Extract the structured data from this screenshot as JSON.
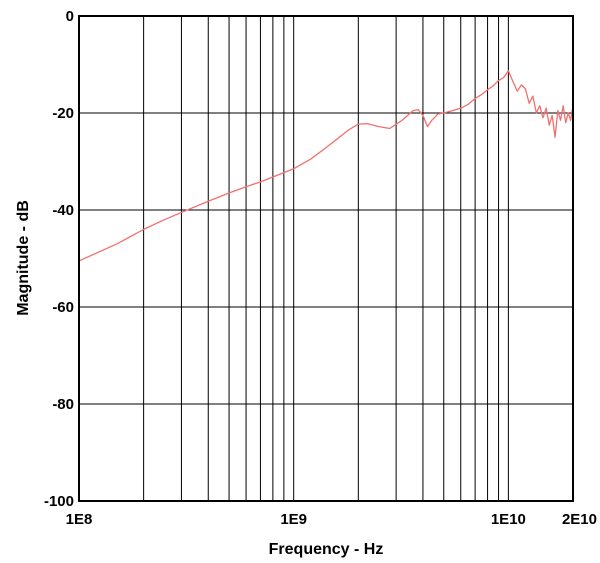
{
  "chart_data": {
    "type": "line",
    "xlabel": "Frequency - Hz",
    "ylabel": "Magnitude - dB",
    "x_scale": "log",
    "xlim": [
      100000000,
      20000000000
    ],
    "ylim": [
      -100,
      0
    ],
    "x_tick_labels": [
      {
        "value": 100000000,
        "label": "1E8"
      },
      {
        "value": 1000000000,
        "label": "1E9"
      },
      {
        "value": 10000000000,
        "label": "1E10"
      },
      {
        "value": 20000000000,
        "label": "2E10"
      }
    ],
    "y_ticks": [
      0,
      -20,
      -40,
      -60,
      -80,
      -100
    ],
    "y_tick_labels": [
      "0",
      "-20",
      "-40",
      "-60",
      "-80",
      "-100"
    ],
    "grid": true,
    "x_gridlines": [
      200000000,
      300000000,
      400000000,
      500000000,
      600000000,
      700000000,
      800000000,
      900000000,
      1000000000,
      2000000000,
      3000000000,
      4000000000,
      5000000000,
      6000000000,
      7000000000,
      8000000000,
      9000000000,
      10000000000
    ],
    "series_color": "#f07070",
    "series": [
      {
        "x": [
          100000000,
          150000000,
          200000000,
          250000000,
          300000000,
          400000000,
          500000000,
          600000000,
          700000000,
          800000000,
          900000000,
          1000000000,
          1200000000,
          1400000000,
          1600000000,
          1800000000,
          2000000000,
          2200000000,
          2500000000,
          2800000000,
          3200000000,
          3600000000,
          3800000000,
          4000000000,
          4200000000,
          4400000000,
          4700000000,
          5000000000,
          5500000000,
          6000000000,
          6500000000,
          7000000000,
          7500000000,
          8000000000,
          8500000000,
          9000000000,
          9500000000,
          10000000000,
          10500000000,
          11000000000,
          11500000000,
          12000000000,
          12500000000,
          13000000000,
          13500000000,
          14000000000,
          14500000000,
          15000000000,
          15500000000,
          16000000000,
          16500000000,
          17000000000,
          17500000000,
          18000000000,
          18500000000,
          19000000000,
          19500000000,
          20000000000
        ],
        "y": [
          -50.5,
          -47,
          -44,
          -42,
          -40.5,
          -38.2,
          -36.5,
          -35.2,
          -34.2,
          -33.2,
          -32.3,
          -31.5,
          -29.5,
          -27.3,
          -25.3,
          -23.5,
          -22.3,
          -22.2,
          -22.8,
          -23.2,
          -21.5,
          -19.5,
          -19.3,
          -20.5,
          -22.8,
          -21.5,
          -20.2,
          -20,
          -19.5,
          -19,
          -18.2,
          -17,
          -16.2,
          -15.2,
          -14.4,
          -13.3,
          -12.7,
          -11.3,
          -13.5,
          -15.5,
          -14.2,
          -15,
          -18,
          -16.5,
          -20,
          -18.5,
          -21,
          -19,
          -22.5,
          -20.5,
          -25,
          -19.5,
          -21.5,
          -18.5,
          -22,
          -20,
          -21.5,
          -18.5
        ]
      }
    ]
  }
}
